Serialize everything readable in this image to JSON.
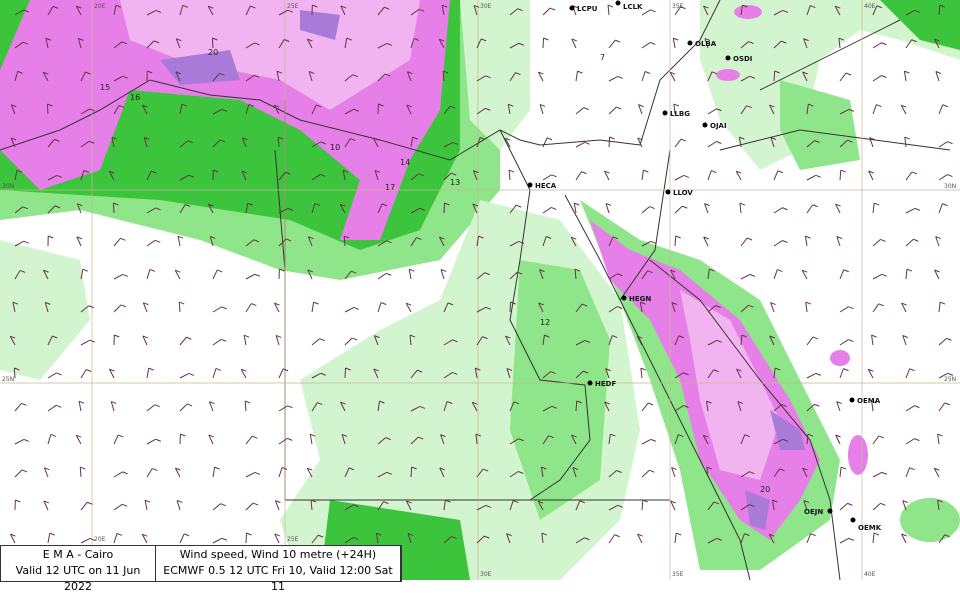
{
  "legend": {
    "source": "E M A  -  Cairo",
    "valid": "Valid 12 UTC on 11 Jun 2022",
    "parameter": "Wind speed, Wind  10 metre (+24H)",
    "model": "ECMWF 0.5 12 UTC Fri 10, Valid 12:00 Sat 11"
  },
  "grid_labels": {
    "lon": [
      "20E",
      "25E",
      "30E",
      "35E",
      "40E"
    ],
    "lat": [
      "30N",
      "25N"
    ]
  },
  "stations": [
    "LCPU",
    "LCLK",
    "OLBA",
    "OSDI",
    "LLBG",
    "OJAI",
    "HECA",
    "LLOV",
    "HEGN",
    "HEDF",
    "OEMA",
    "OEJN",
    "OEMK"
  ],
  "contour_labels": [
    "20",
    "20",
    "17",
    "16",
    "15",
    "14",
    "13",
    "12",
    "10",
    "7"
  ],
  "colors": {
    "light_green": "#d2f5cf",
    "green": "#8fe58a",
    "dark_green": "#3cc43c",
    "light_pink": "#f2b4f0",
    "pink": "#e77fe8",
    "purple": "#a97ad8"
  }
}
